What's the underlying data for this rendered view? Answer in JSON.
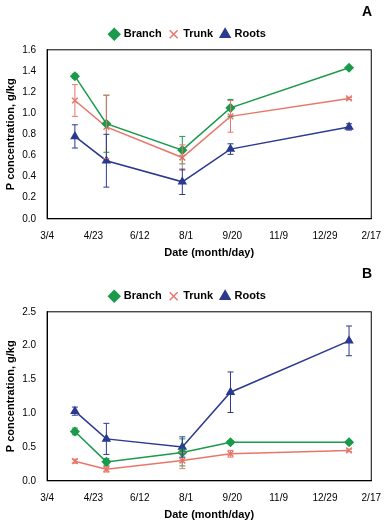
{
  "chart_data": [
    {
      "type": "line",
      "title": "A",
      "x_label": "Date (month/day)",
      "y_label": "P concentration, g/kg",
      "x": [
        93,
        127,
        209,
        261,
        389
      ],
      "xlim": [
        63,
        413
      ],
      "xticks": [
        {
          "value": 63,
          "label": "3/4"
        },
        {
          "value": 113,
          "label": "4/23"
        },
        {
          "value": 163,
          "label": "6/12"
        },
        {
          "value": 213,
          "label": "8/1"
        },
        {
          "value": 263,
          "label": "9/20"
        },
        {
          "value": 313,
          "label": "11/9"
        },
        {
          "value": 363,
          "label": "12/29"
        },
        {
          "value": 413,
          "label": "2/17"
        }
      ],
      "ylim": [
        0,
        1.6
      ],
      "yticks": [
        {
          "value": 0,
          "label": "0.0"
        },
        0.2,
        0.4,
        0.6,
        0.8,
        {
          "value": 1,
          "label": "1.0"
        },
        1.2,
        1.4,
        1.6
      ],
      "grid": false,
      "legend": "top",
      "series": [
        {
          "name": "Branch",
          "color": "#1a9a4a",
          "marker": "diamond",
          "values": [
            1.35,
            0.9,
            0.65,
            1.05,
            1.43
          ],
          "errors": [
            0.02,
            0.27,
            0.13,
            0.08,
            0.01
          ]
        },
        {
          "name": "Trunk",
          "color": "#e8766a",
          "marker": "x",
          "values": [
            1.12,
            0.87,
            0.58,
            0.97,
            1.14
          ],
          "errors": [
            0.15,
            0.3,
            0.12,
            0.15,
            0.01
          ]
        },
        {
          "name": "Roots",
          "color": "#2b3a8f",
          "marker": "triangle",
          "values": [
            0.78,
            0.55,
            0.35,
            0.66,
            0.87
          ],
          "errors": [
            0.11,
            0.25,
            0.12,
            0.05,
            0.03
          ]
        }
      ]
    },
    {
      "type": "line",
      "title": "B",
      "x_label": "Date (month/day)",
      "y_label": "P concentration, g/kg",
      "x": [
        93,
        127,
        209,
        261,
        389
      ],
      "xlim": [
        63,
        413
      ],
      "xticks": [
        {
          "value": 63,
          "label": "3/4"
        },
        {
          "value": 113,
          "label": "4/23"
        },
        {
          "value": 163,
          "label": "6/12"
        },
        {
          "value": 213,
          "label": "8/1"
        },
        {
          "value": 263,
          "label": "9/20"
        },
        {
          "value": 313,
          "label": "11/9"
        },
        {
          "value": 363,
          "label": "12/29"
        },
        {
          "value": 413,
          "label": "2/17"
        }
      ],
      "ylim": [
        0,
        2.5
      ],
      "yticks": [
        {
          "value": 0,
          "label": "0.0"
        },
        0.5,
        {
          "value": 1,
          "label": "1.0"
        },
        1.5,
        {
          "value": 2,
          "label": "2.0"
        },
        2.5
      ],
      "grid": false,
      "legend": "top",
      "series": [
        {
          "name": "Branch",
          "color": "#1a9a4a",
          "marker": "diamond",
          "values": [
            0.73,
            0.28,
            0.42,
            0.57,
            0.57
          ],
          "errors": [
            0.05,
            0.05,
            0.2,
            0.02,
            0.02
          ]
        },
        {
          "name": "Trunk",
          "color": "#e8766a",
          "marker": "x",
          "values": [
            0.29,
            0.17,
            0.3,
            0.4,
            0.45
          ],
          "errors": [
            0.03,
            0.04,
            0.12,
            0.05,
            0.02
          ]
        },
        {
          "name": "Roots",
          "color": "#2b3a8f",
          "marker": "triangle",
          "values": [
            1.03,
            0.62,
            0.5,
            1.31,
            2.07
          ],
          "errors": [
            0.06,
            0.23,
            0.15,
            0.3,
            0.22
          ]
        }
      ]
    }
  ]
}
